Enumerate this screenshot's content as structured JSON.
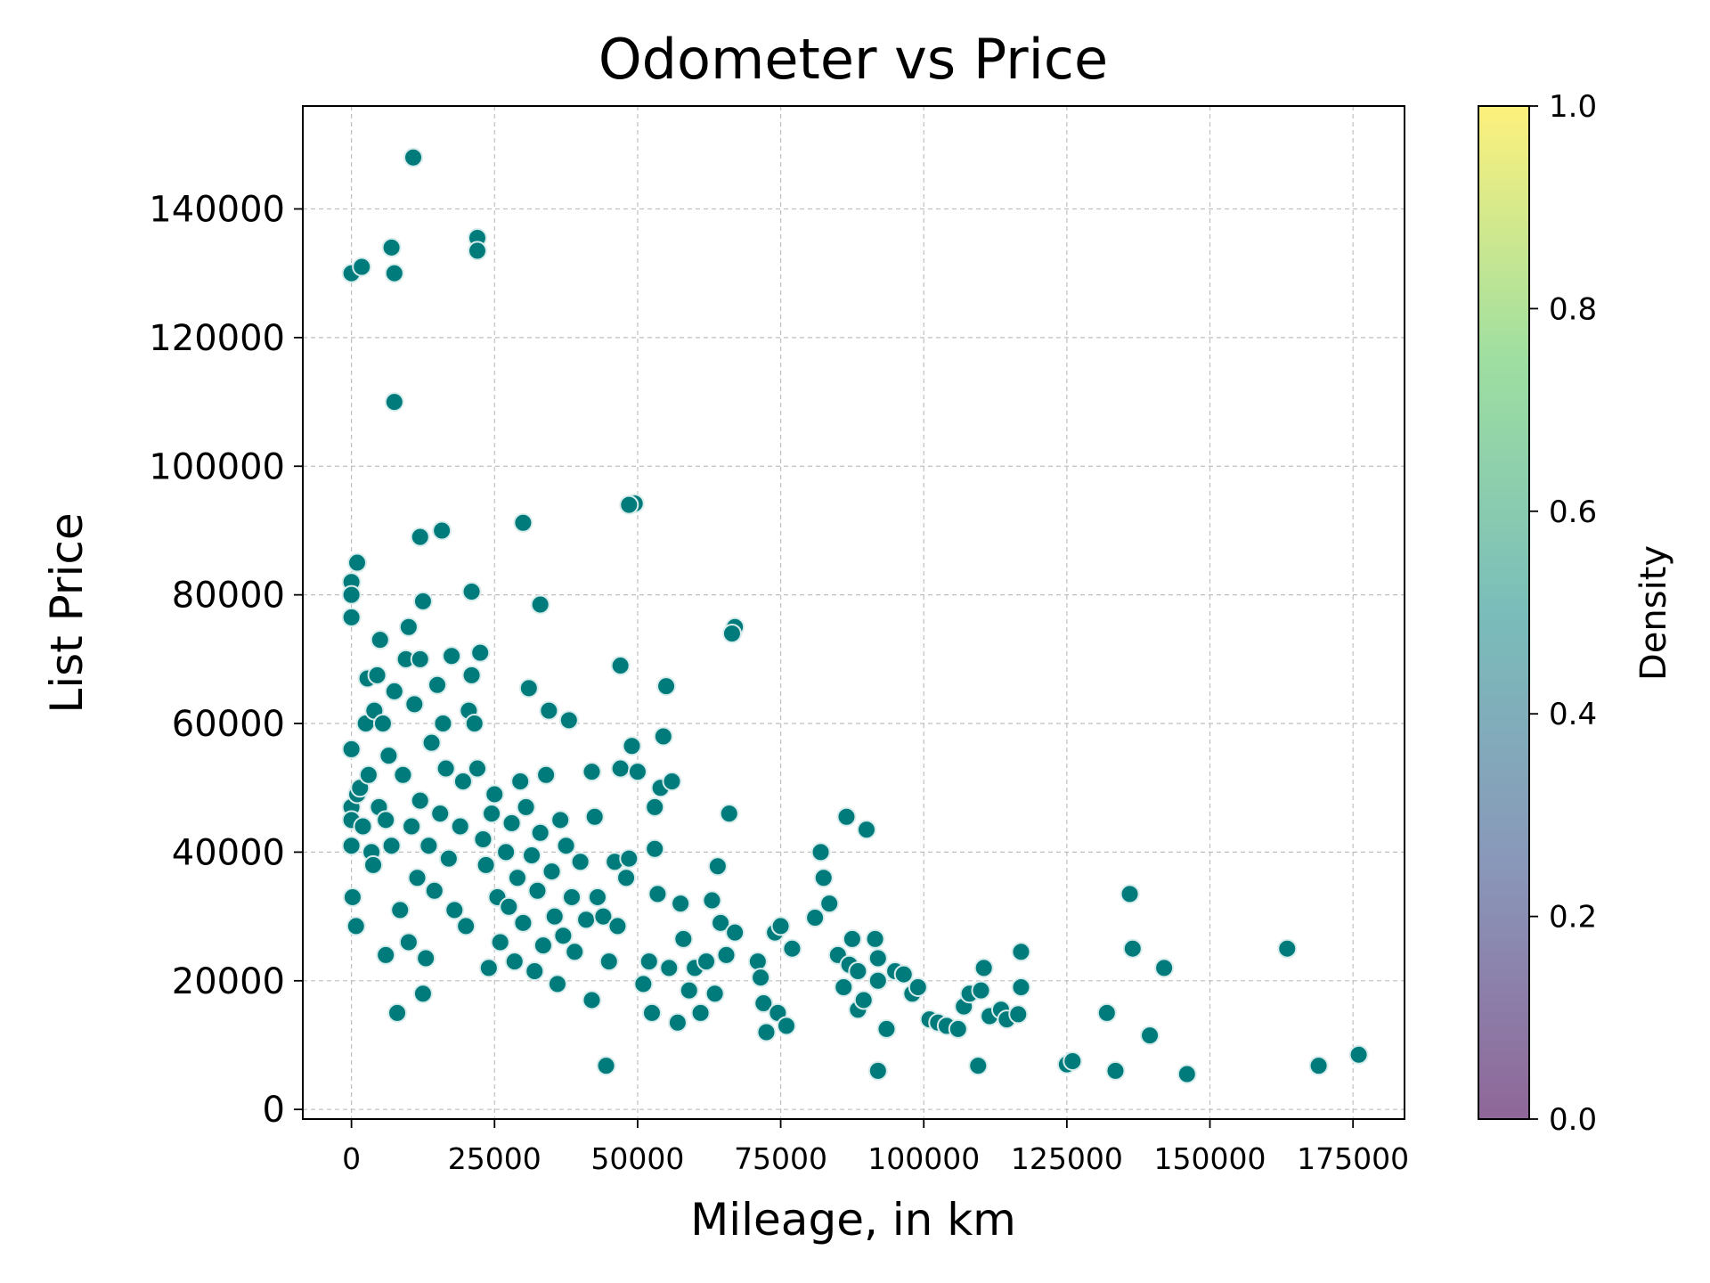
{
  "chart_data": {
    "type": "scatter",
    "title": "Odometer vs Price",
    "xlabel": "Mileage, in km",
    "ylabel": "List Price",
    "xlim": [
      -8500,
      184000
    ],
    "ylim": [
      -1500,
      156000
    ],
    "xticks": [
      0,
      25000,
      50000,
      75000,
      100000,
      125000,
      150000,
      175000
    ],
    "xtick_labels": [
      "0",
      "25000",
      "50000",
      "75000",
      "100000",
      "125000",
      "150000",
      "175000"
    ],
    "yticks": [
      0,
      20000,
      40000,
      60000,
      80000,
      100000,
      120000,
      140000
    ],
    "ytick_labels": [
      "0",
      "20000",
      "40000",
      "60000",
      "80000",
      "100000",
      "120000",
      "140000"
    ],
    "grid": true,
    "marker_color": "#007b7b",
    "marker_edge_color": "#d8ecec",
    "colorbar": {
      "label": "Density",
      "range": [
        0.0,
        1.0
      ],
      "ticks": [
        0.0,
        0.2,
        0.4,
        0.6,
        0.8,
        1.0
      ],
      "tick_labels": [
        "0.0",
        "0.2",
        "0.4",
        "0.6",
        "0.8",
        "1.0"
      ],
      "colormap": "viridis",
      "stops": [
        "#440154",
        "#3b528b",
        "#21918c",
        "#5ec962",
        "#fde725"
      ]
    },
    "points": [
      [
        0,
        130000
      ],
      [
        1800,
        131000
      ],
      [
        7000,
        134000
      ],
      [
        7500,
        130000
      ],
      [
        10800,
        148000
      ],
      [
        22000,
        135500
      ],
      [
        22000,
        133500
      ],
      [
        7500,
        110000
      ],
      [
        0,
        82000
      ],
      [
        0,
        80000
      ],
      [
        1000,
        85000
      ],
      [
        0,
        76500
      ],
      [
        12000,
        89000
      ],
      [
        15800,
        90000
      ],
      [
        21000,
        80500
      ],
      [
        12500,
        79000
      ],
      [
        30000,
        91200
      ],
      [
        33000,
        78500
      ],
      [
        49500,
        94200
      ],
      [
        48500,
        94000
      ],
      [
        67000,
        75000
      ],
      [
        66500,
        74000
      ],
      [
        0,
        56000
      ],
      [
        0,
        47000
      ],
      [
        0,
        45000
      ],
      [
        0,
        41000
      ],
      [
        200,
        33000
      ],
      [
        800,
        28500
      ],
      [
        1000,
        49000
      ],
      [
        1500,
        50000
      ],
      [
        2000,
        44000
      ],
      [
        2500,
        60000
      ],
      [
        2800,
        67000
      ],
      [
        3000,
        52000
      ],
      [
        3500,
        40000
      ],
      [
        3800,
        38000
      ],
      [
        4000,
        62000
      ],
      [
        4500,
        67500
      ],
      [
        4800,
        47000
      ],
      [
        5000,
        73000
      ],
      [
        5500,
        60000
      ],
      [
        6000,
        45000
      ],
      [
        6000,
        24000
      ],
      [
        6500,
        55000
      ],
      [
        7000,
        41000
      ],
      [
        7500,
        65000
      ],
      [
        8000,
        15000
      ],
      [
        8500,
        31000
      ],
      [
        9000,
        52000
      ],
      [
        9500,
        70000
      ],
      [
        10000,
        75000
      ],
      [
        10000,
        26000
      ],
      [
        10500,
        44000
      ],
      [
        11000,
        63000
      ],
      [
        11500,
        36000
      ],
      [
        12000,
        70000
      ],
      [
        12000,
        48000
      ],
      [
        12500,
        18000
      ],
      [
        13000,
        23500
      ],
      [
        13500,
        41000
      ],
      [
        14000,
        57000
      ],
      [
        14500,
        34000
      ],
      [
        15000,
        66000
      ],
      [
        15500,
        46000
      ],
      [
        16000,
        60000
      ],
      [
        16500,
        53000
      ],
      [
        17000,
        39000
      ],
      [
        17500,
        70500
      ],
      [
        18000,
        31000
      ],
      [
        19000,
        44000
      ],
      [
        19500,
        51000
      ],
      [
        20000,
        28500
      ],
      [
        20500,
        62000
      ],
      [
        21000,
        67500
      ],
      [
        21500,
        60000
      ],
      [
        22000,
        53000
      ],
      [
        22500,
        71000
      ],
      [
        23000,
        42000
      ],
      [
        23500,
        38000
      ],
      [
        24000,
        22000
      ],
      [
        24500,
        46000
      ],
      [
        25000,
        49000
      ],
      [
        25500,
        33000
      ],
      [
        26000,
        26000
      ],
      [
        27000,
        40000
      ],
      [
        27500,
        31500
      ],
      [
        28000,
        44500
      ],
      [
        28500,
        23000
      ],
      [
        29000,
        36000
      ],
      [
        29500,
        51000
      ],
      [
        30000,
        29000
      ],
      [
        30500,
        47000
      ],
      [
        31000,
        65500
      ],
      [
        31500,
        39500
      ],
      [
        32000,
        21500
      ],
      [
        32500,
        34000
      ],
      [
        33000,
        43000
      ],
      [
        33500,
        25500
      ],
      [
        34000,
        52000
      ],
      [
        34500,
        62000
      ],
      [
        35000,
        37000
      ],
      [
        35500,
        30000
      ],
      [
        36000,
        19500
      ],
      [
        36500,
        45000
      ],
      [
        37000,
        27000
      ],
      [
        37500,
        41000
      ],
      [
        38000,
        60500
      ],
      [
        38500,
        33000
      ],
      [
        39000,
        24500
      ],
      [
        40000,
        38500
      ],
      [
        41000,
        29500
      ],
      [
        42000,
        17000
      ],
      [
        42000,
        52500
      ],
      [
        42500,
        45500
      ],
      [
        43000,
        33000
      ],
      [
        44000,
        30000
      ],
      [
        44500,
        6800
      ],
      [
        45000,
        23000
      ],
      [
        46000,
        38500
      ],
      [
        46500,
        28500
      ],
      [
        47000,
        69000
      ],
      [
        47000,
        53000
      ],
      [
        48000,
        36000
      ],
      [
        48500,
        39000
      ],
      [
        49000,
        56500
      ],
      [
        50000,
        52500
      ],
      [
        51000,
        19500
      ],
      [
        52000,
        23000
      ],
      [
        52500,
        15000
      ],
      [
        53000,
        47000
      ],
      [
        53000,
        40500
      ],
      [
        53500,
        33500
      ],
      [
        54000,
        50000
      ],
      [
        54500,
        58000
      ],
      [
        55000,
        65800
      ],
      [
        55500,
        22000
      ],
      [
        56000,
        51000
      ],
      [
        57000,
        13500
      ],
      [
        57500,
        32000
      ],
      [
        58000,
        26500
      ],
      [
        59000,
        18500
      ],
      [
        60000,
        22000
      ],
      [
        61000,
        15000
      ],
      [
        62000,
        23000
      ],
      [
        63000,
        32500
      ],
      [
        63500,
        18000
      ],
      [
        64000,
        37800
      ],
      [
        64500,
        29000
      ],
      [
        65500,
        24000
      ],
      [
        66000,
        46000
      ],
      [
        67000,
        27500
      ],
      [
        71000,
        23000
      ],
      [
        71500,
        20500
      ],
      [
        72000,
        16500
      ],
      [
        72500,
        12000
      ],
      [
        74000,
        27500
      ],
      [
        74500,
        15000
      ],
      [
        75000,
        28500
      ],
      [
        76000,
        13000
      ],
      [
        77000,
        25000
      ],
      [
        81000,
        29800
      ],
      [
        82000,
        40000
      ],
      [
        82500,
        36000
      ],
      [
        83500,
        32000
      ],
      [
        85000,
        24000
      ],
      [
        86000,
        19000
      ],
      [
        86500,
        45500
      ],
      [
        87000,
        22500
      ],
      [
        87500,
        26500
      ],
      [
        88500,
        21500
      ],
      [
        88500,
        15500
      ],
      [
        89500,
        17000
      ],
      [
        90000,
        43500
      ],
      [
        91500,
        26500
      ],
      [
        92000,
        6000
      ],
      [
        92000,
        23500
      ],
      [
        92000,
        20000
      ],
      [
        93500,
        12500
      ],
      [
        95000,
        21500
      ],
      [
        96500,
        21000
      ],
      [
        98000,
        18000
      ],
      [
        99000,
        19000
      ],
      [
        101000,
        14000
      ],
      [
        102500,
        13500
      ],
      [
        104000,
        13000
      ],
      [
        106000,
        12500
      ],
      [
        107000,
        16000
      ],
      [
        108000,
        18000
      ],
      [
        109500,
        6800
      ],
      [
        110000,
        18500
      ],
      [
        110500,
        22000
      ],
      [
        111500,
        14500
      ],
      [
        113500,
        15500
      ],
      [
        114500,
        14000
      ],
      [
        116500,
        14800
      ],
      [
        117000,
        19000
      ],
      [
        117000,
        24500
      ],
      [
        125000,
        7000
      ],
      [
        126000,
        7500
      ],
      [
        132000,
        15000
      ],
      [
        133500,
        6000
      ],
      [
        136000,
        33500
      ],
      [
        136500,
        25000
      ],
      [
        139500,
        11500
      ],
      [
        142000,
        22000
      ],
      [
        146000,
        5500
      ],
      [
        163500,
        25000
      ],
      [
        169000,
        6800
      ],
      [
        176000,
        8500
      ]
    ]
  }
}
